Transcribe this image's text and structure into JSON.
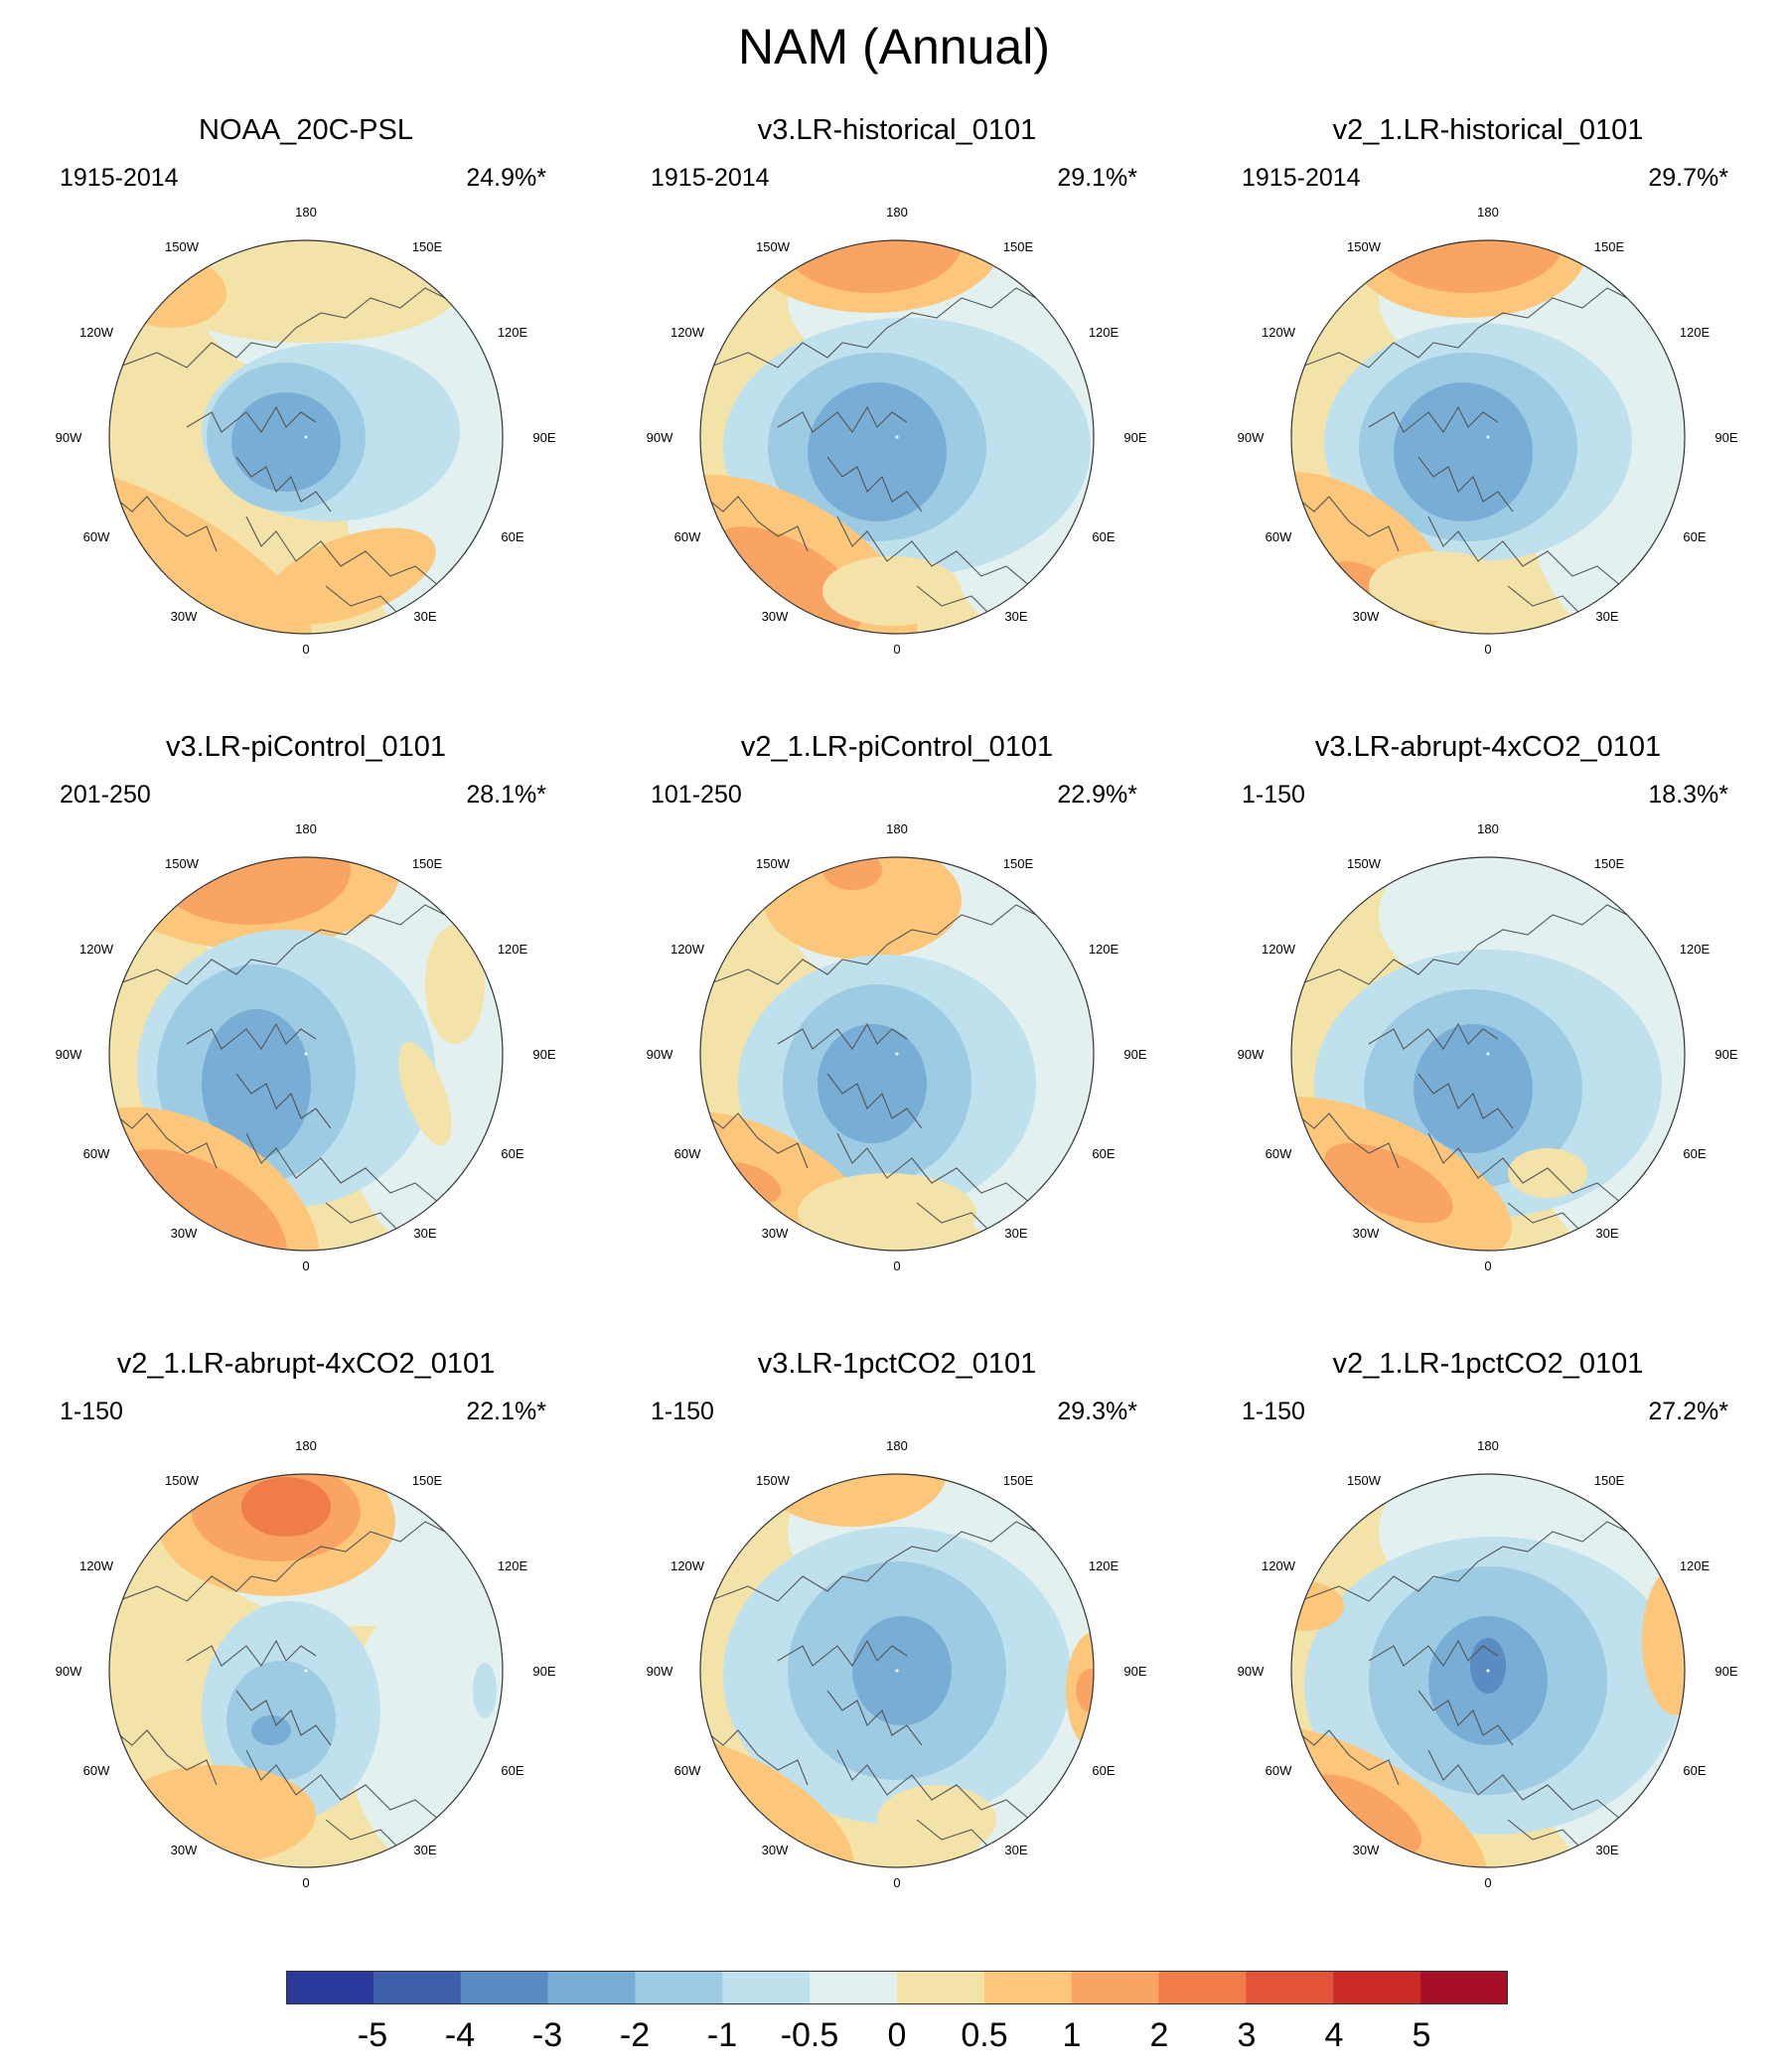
{
  "title": "NAM (Annual)",
  "colorbar": {
    "colors": [
      "#2b3a9a",
      "#3d5ea8",
      "#5a8bc3",
      "#78aed5",
      "#9dcbe3",
      "#bfe1ed",
      "#e2f1f0",
      "#f4e3a8",
      "#fcc77a",
      "#f9a462",
      "#f07c4a",
      "#e35337",
      "#cc2a26",
      "#a70f28"
    ],
    "labels": [
      "-5",
      "-4",
      "-3",
      "-2",
      "-1",
      "-0.5",
      "0",
      "0.5",
      "1",
      "2",
      "3",
      "4",
      "5"
    ]
  },
  "lon_labels": [
    "180",
    "150E",
    "120E",
    "90E",
    "60E",
    "30E",
    "0",
    "30W",
    "60W",
    "90W",
    "120W",
    "150W"
  ],
  "panels": [
    {
      "title": "NOAA_20C-PSL",
      "period": "1915-2014",
      "variance": "24.9%*"
    },
    {
      "title": "v3.LR-historical_0101",
      "period": "1915-2014",
      "variance": "29.1%*"
    },
    {
      "title": "v2_1.LR-historical_0101",
      "period": "1915-2014",
      "variance": "29.7%*"
    },
    {
      "title": "v3.LR-piControl_0101",
      "period": "201-250",
      "variance": "28.1%*"
    },
    {
      "title": "v2_1.LR-piControl_0101",
      "period": "101-250",
      "variance": "22.9%*"
    },
    {
      "title": "v3.LR-abrupt-4xCO2_0101",
      "period": "1-150",
      "variance": "18.3%*"
    },
    {
      "title": "v2_1.LR-abrupt-4xCO2_0101",
      "period": "1-150",
      "variance": "22.1%*"
    },
    {
      "title": "v3.LR-1pctCO2_0101",
      "period": "1-150",
      "variance": "29.3%*"
    },
    {
      "title": "v2_1.LR-1pctCO2_0101",
      "period": "1-150",
      "variance": "27.2%*"
    }
  ]
}
